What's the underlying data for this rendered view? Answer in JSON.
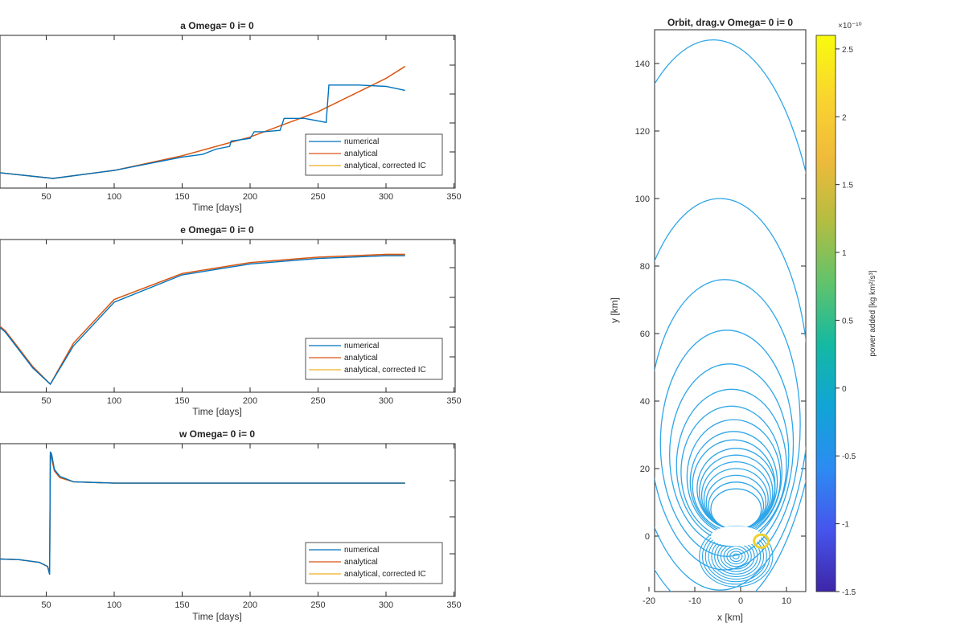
{
  "chart_data": [
    {
      "type": "line",
      "title": "a Omega= 0 i= 0",
      "xlabel": "Time [days]",
      "xlim": [
        0,
        350
      ],
      "x_ticks": [
        50,
        100,
        150,
        200,
        250,
        300,
        350
      ],
      "legend": {
        "placement": "bottom-right",
        "entries": [
          "numerical",
          "analytical",
          "analytical, corrected IC"
        ]
      },
      "series": [
        {
          "name": "numerical",
          "color": "#0072BD",
          "x": [
            0,
            55,
            100,
            150,
            165,
            175,
            185,
            186,
            200,
            203,
            210,
            222,
            225,
            240,
            256,
            258,
            280,
            300,
            314
          ],
          "y": [
            0.06,
            0.0,
            0.06,
            0.16,
            0.18,
            0.22,
            0.24,
            0.28,
            0.3,
            0.35,
            0.35,
            0.36,
            0.45,
            0.45,
            0.42,
            0.7,
            0.7,
            0.69,
            0.66
          ]
        },
        {
          "name": "analytical",
          "color": "#D95319",
          "x": [
            0,
            55,
            100,
            150,
            200,
            250,
            300,
            314
          ],
          "y": [
            0.06,
            0.0,
            0.06,
            0.17,
            0.31,
            0.5,
            0.75,
            0.84
          ]
        },
        {
          "name": "analytical, corrected IC",
          "color": "#EDB120",
          "x": [
            0,
            55,
            100,
            150,
            200,
            250,
            300,
            314
          ],
          "y": [
            0.06,
            0.0,
            0.06,
            0.17,
            0.31,
            0.5,
            0.75,
            0.84
          ]
        }
      ]
    },
    {
      "type": "line",
      "title": "e Omega= 0 i= 0",
      "xlabel": "Time [days]",
      "xlim": [
        0,
        350
      ],
      "x_ticks": [
        50,
        100,
        150,
        200,
        250,
        300,
        350
      ],
      "legend": {
        "placement": "bottom-right",
        "entries": [
          "numerical",
          "analytical",
          "analytical, corrected IC"
        ]
      },
      "series": [
        {
          "name": "numerical",
          "color": "#0072BD",
          "x": [
            0,
            20,
            40,
            53,
            70,
            100,
            150,
            200,
            250,
            300,
            314
          ],
          "y": [
            0.55,
            0.38,
            0.12,
            0.0,
            0.28,
            0.6,
            0.8,
            0.88,
            0.92,
            0.94,
            0.94
          ]
        },
        {
          "name": "analytical",
          "color": "#D95319",
          "x": [
            0,
            20,
            40,
            53,
            70,
            100,
            150,
            200,
            250,
            300,
            314
          ],
          "y": [
            0.56,
            0.39,
            0.13,
            0.0,
            0.3,
            0.62,
            0.81,
            0.89,
            0.93,
            0.95,
            0.95
          ]
        },
        {
          "name": "analytical, corrected IC",
          "color": "#EDB120",
          "x": [
            0,
            20,
            40,
            53,
            70,
            100,
            150,
            200,
            250,
            300,
            314
          ],
          "y": [
            0.56,
            0.39,
            0.13,
            0.0,
            0.3,
            0.62,
            0.81,
            0.89,
            0.93,
            0.95,
            0.95
          ]
        }
      ]
    },
    {
      "type": "line",
      "title": "w Omega= 0 i= 0",
      "xlabel": "Time [days]",
      "xlim": [
        0,
        350
      ],
      "x_ticks": [
        50,
        100,
        150,
        200,
        250,
        300,
        350
      ],
      "legend": {
        "placement": "bottom-right",
        "entries": [
          "numerical",
          "analytical",
          "analytical, corrected IC"
        ]
      },
      "series": [
        {
          "name": "numerical",
          "color": "#0072BD",
          "x": [
            0,
            30,
            45,
            51,
            52.5,
            53,
            54,
            56,
            60,
            70,
            100,
            200,
            314
          ],
          "y": [
            0.22,
            0.21,
            0.19,
            0.16,
            0.1,
            1.0,
            0.98,
            0.87,
            0.82,
            0.78,
            0.77,
            0.77,
            0.77
          ]
        },
        {
          "name": "analytical",
          "color": "#D95319",
          "x": [
            0,
            30,
            45,
            51,
            52.5,
            53,
            54,
            56,
            60,
            70,
            100,
            200,
            314
          ],
          "y": [
            0.22,
            0.21,
            0.19,
            0.16,
            0.12,
            0.98,
            0.95,
            0.86,
            0.81,
            0.78,
            0.77,
            0.77,
            0.77
          ]
        },
        {
          "name": "analytical, corrected IC",
          "color": "#EDB120",
          "x": [
            0,
            30,
            45,
            51,
            52.5,
            53,
            54,
            56,
            60,
            70,
            100,
            200,
            314
          ],
          "y": [
            0.22,
            0.21,
            0.19,
            0.16,
            0.12,
            0.98,
            0.95,
            0.86,
            0.81,
            0.78,
            0.77,
            0.77,
            0.77
          ]
        }
      ]
    },
    {
      "type": "line",
      "title": "Orbit, drag.v Omega= 0 i= 0",
      "xlabel": "x [km]",
      "ylabel": "y [km]",
      "xlim": [
        -25,
        20
      ],
      "ylim": [
        -16,
        150
      ],
      "x_ticks": [
        -20,
        -10,
        0,
        10
      ],
      "y_ticks": [
        0,
        20,
        40,
        60,
        80,
        100,
        120,
        140
      ],
      "grid": false,
      "orbit_color": "#2FA6E8",
      "ellipses": [
        {
          "cx": -6,
          "cy": 62,
          "rx": 24,
          "ry": 85
        },
        {
          "cx": -4.5,
          "cy": 42,
          "rx": 19.5,
          "ry": 58
        },
        {
          "cx": -3.5,
          "cy": 33,
          "rx": 16.5,
          "ry": 43
        },
        {
          "cx": -3,
          "cy": 27.5,
          "rx": 14.5,
          "ry": 33.5
        },
        {
          "cx": -2.5,
          "cy": 24,
          "rx": 13,
          "ry": 27
        },
        {
          "cx": -2,
          "cy": 21,
          "rx": 12,
          "ry": 22.5
        },
        {
          "cx": -2,
          "cy": 19,
          "rx": 11,
          "ry": 19.5
        },
        {
          "cx": -1.5,
          "cy": 17.5,
          "rx": 10.2,
          "ry": 17
        },
        {
          "cx": -1.5,
          "cy": 16,
          "rx": 9.5,
          "ry": 15
        },
        {
          "cx": -1.5,
          "cy": 15,
          "rx": 9,
          "ry": 13.5
        },
        {
          "cx": -1,
          "cy": 14,
          "rx": 8.5,
          "ry": 12
        },
        {
          "cx": -1,
          "cy": 13,
          "rx": 8,
          "ry": 11
        },
        {
          "cx": -1,
          "cy": 12,
          "rx": 7.5,
          "ry": 10
        },
        {
          "cx": -1,
          "cy": 11,
          "rx": 7,
          "ry": 9
        },
        {
          "cx": -1,
          "cy": 10,
          "rx": 6.5,
          "ry": 8
        },
        {
          "cx": -1,
          "cy": 9,
          "rx": 6,
          "ry": 7
        },
        {
          "cx": -1,
          "cy": 8,
          "rx": 5.5,
          "ry": 6
        }
      ],
      "lower_lobe": {
        "cx": -1,
        "cy": -6,
        "rx": 8,
        "ry": 9,
        "rings": 12
      },
      "colorbar": {
        "label": "power added [kg km²/s³]",
        "exponent": "×10⁻¹⁰",
        "range": [
          -1.5,
          2.6
        ],
        "ticks": [
          -1.5,
          -1,
          -0.5,
          0,
          0.5,
          1,
          1.5,
          2,
          2.5
        ],
        "tick_labels": [
          "-1.5",
          "-1",
          "-0.5",
          "0",
          "0.5",
          "1",
          "1.5",
          "2",
          "2.5"
        ],
        "colormap": [
          "#3E26A8",
          "#4655ED",
          "#2C8CF2",
          "#11A4D6",
          "#14B9A2",
          "#61C36B",
          "#B4BD41",
          "#F0BA3B",
          "#F9D52E",
          "#F9FB0E"
        ]
      }
    }
  ]
}
